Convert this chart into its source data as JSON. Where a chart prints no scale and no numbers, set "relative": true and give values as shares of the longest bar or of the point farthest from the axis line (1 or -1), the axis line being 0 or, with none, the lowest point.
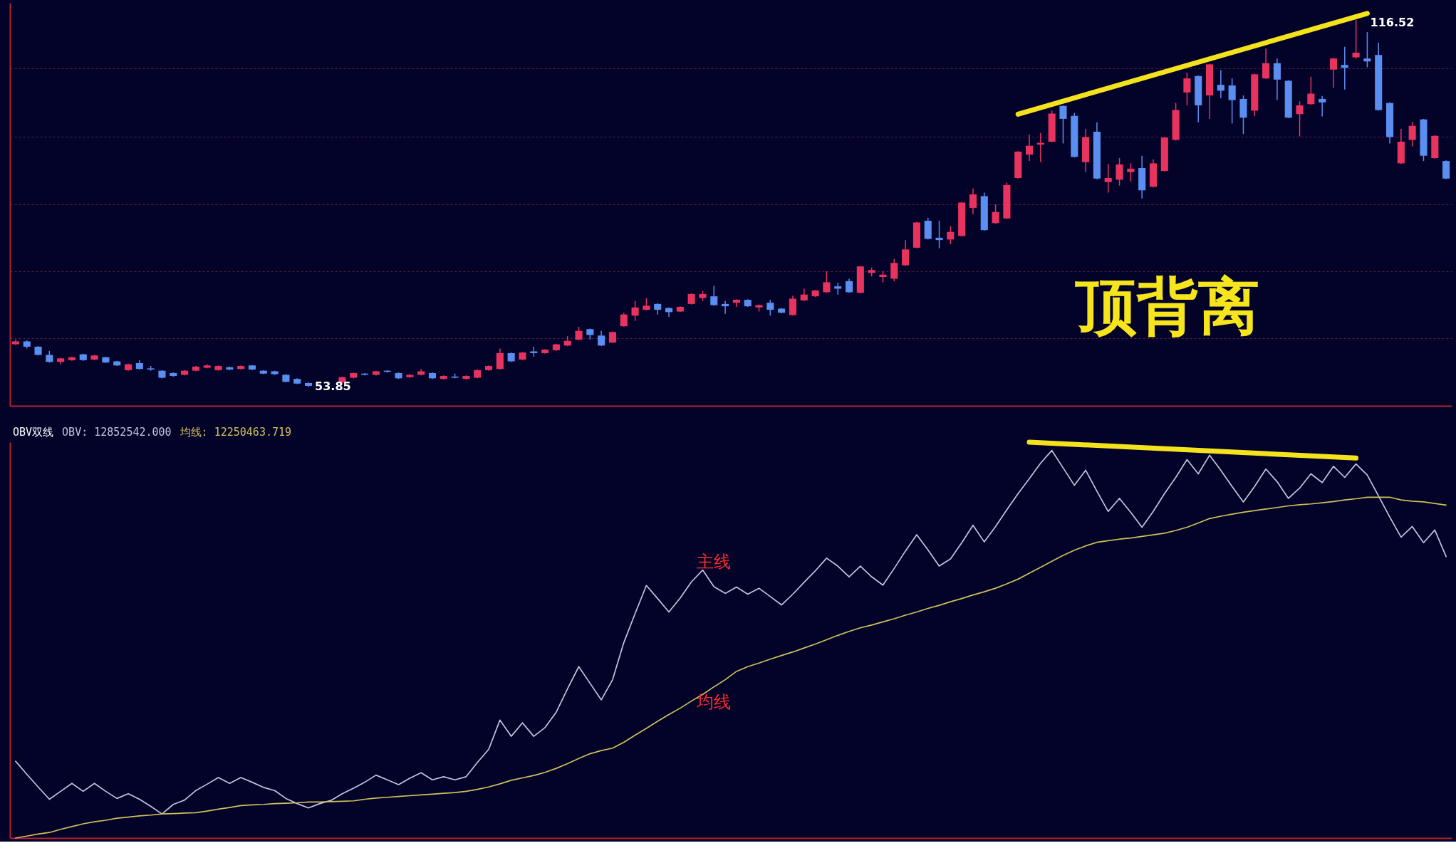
{
  "chart_data": [
    {
      "type": "candlestick",
      "categories": [
        null,
        null,
        null,
        null,
        null,
        null,
        null,
        null,
        null,
        null,
        null,
        null,
        null,
        null,
        null,
        null,
        null,
        null,
        null,
        null,
        null,
        null,
        null,
        null,
        null,
        null,
        null,
        null,
        null,
        null,
        null,
        null,
        null,
        null,
        null,
        null,
        null,
        null,
        null,
        null,
        null,
        null,
        null,
        null,
        null,
        null,
        null,
        null,
        null,
        null,
        null,
        null,
        null,
        null,
        null,
        null,
        null,
        null,
        null,
        null,
        null,
        null,
        null,
        null,
        null,
        null,
        null,
        null,
        null,
        null,
        null,
        null,
        null,
        null,
        null,
        null,
        null,
        null,
        null,
        null,
        null,
        null,
        null,
        null,
        null,
        null,
        null,
        null,
        null,
        null,
        null,
        null,
        null,
        null,
        null,
        null,
        null,
        null,
        null,
        null,
        null,
        null,
        null,
        null,
        null,
        null,
        null,
        null,
        null,
        null,
        null,
        null,
        null,
        null,
        null,
        null,
        null,
        null,
        null,
        null,
        null,
        null,
        null,
        null,
        null,
        null,
        null,
        null
      ],
      "ohlc": [
        [
          61.1,
          61.9,
          61.0,
          61.6
        ],
        [
          61.6,
          61.8,
          60.4,
          60.7
        ],
        [
          60.7,
          60.8,
          59.2,
          59.3
        ],
        [
          59.3,
          60.0,
          58.0,
          58.1
        ],
        [
          58.1,
          58.8,
          57.7,
          58.7
        ],
        [
          58.4,
          59.0,
          58.3,
          58.9
        ],
        [
          59.4,
          59.5,
          58.3,
          58.4
        ],
        [
          58.5,
          59.3,
          58.4,
          59.2
        ],
        [
          58.9,
          59.0,
          57.9,
          58.0
        ],
        [
          58.2,
          58.3,
          57.4,
          57.5
        ],
        [
          56.7,
          57.8,
          56.6,
          57.7
        ],
        [
          57.9,
          58.4,
          56.8,
          56.9
        ],
        [
          57.0,
          57.4,
          56.6,
          56.8
        ],
        [
          56.6,
          56.7,
          55.3,
          55.4
        ],
        [
          56.2,
          56.3,
          55.6,
          55.7
        ],
        [
          55.9,
          56.7,
          55.8,
          56.6
        ],
        [
          56.6,
          57.4,
          56.5,
          57.3
        ],
        [
          57.1,
          57.7,
          57.0,
          57.5
        ],
        [
          56.7,
          57.5,
          56.6,
          57.4
        ],
        [
          57.2,
          57.3,
          56.7,
          56.8
        ],
        [
          56.9,
          57.5,
          56.8,
          57.4
        ],
        [
          57.5,
          57.6,
          56.7,
          56.8
        ],
        [
          56.6,
          56.7,
          56.0,
          56.1
        ],
        [
          56.5,
          56.6,
          55.9,
          56.0
        ],
        [
          55.9,
          56.0,
          54.6,
          54.7
        ],
        [
          55.2,
          55.3,
          54.3,
          54.4
        ],
        [
          54.5,
          54.6,
          53.85,
          54.0
        ],
        null,
        null,
        [
          54.6,
          55.6,
          54.5,
          55.5
        ],
        [
          55.4,
          56.3,
          55.3,
          56.2
        ],
        [
          56.1,
          56.2,
          55.8,
          55.9
        ],
        [
          55.9,
          56.6,
          55.8,
          56.5
        ],
        [
          56.6,
          56.7,
          56.3,
          56.4
        ],
        [
          56.2,
          56.3,
          55.2,
          55.3
        ],
        [
          55.5,
          56.0,
          55.4,
          55.9
        ],
        [
          55.9,
          56.9,
          55.8,
          56.5
        ],
        [
          56.2,
          56.3,
          55.2,
          55.3
        ],
        [
          55.2,
          55.8,
          55.1,
          55.7
        ],
        [
          55.6,
          56.1,
          55.3,
          55.4
        ],
        [
          55.2,
          55.8,
          55.1,
          55.7
        ],
        [
          55.4,
          56.8,
          55.3,
          56.7
        ],
        [
          56.7,
          57.5,
          56.6,
          57.4
        ],
        [
          56.9,
          60.4,
          56.8,
          59.6
        ],
        [
          59.6,
          59.7,
          58.1,
          58.2
        ],
        [
          58.5,
          59.8,
          58.4,
          59.7
        ],
        [
          59.9,
          60.7,
          59.0,
          59.6
        ],
        [
          59.6,
          60.3,
          59.5,
          60.2
        ],
        [
          60.1,
          61.2,
          60.0,
          61.1
        ],
        [
          60.9,
          62.5,
          60.8,
          61.7
        ],
        [
          61.9,
          64.1,
          61.8,
          63.4
        ],
        [
          63.7,
          63.8,
          61.9,
          62.7
        ],
        [
          62.6,
          63.4,
          60.8,
          60.9
        ],
        [
          61.4,
          63.3,
          61.3,
          63.2
        ],
        [
          64.2,
          66.5,
          64.1,
          66.2
        ],
        [
          66.0,
          68.5,
          65.1,
          67.4
        ],
        [
          67.0,
          69.0,
          66.9,
          67.7
        ],
        [
          68.0,
          68.1,
          66.2,
          67.0
        ],
        [
          67.3,
          67.4,
          65.8,
          66.6
        ],
        [
          66.7,
          67.6,
          66.6,
          67.5
        ],
        [
          68.0,
          69.8,
          67.9,
          69.7
        ],
        [
          69.0,
          70.2,
          68.5,
          69.7
        ],
        [
          69.3,
          71.1,
          67.7,
          67.8
        ],
        [
          68.0,
          68.5,
          66.3,
          67.6
        ],
        [
          68.2,
          68.8,
          67.5,
          68.7
        ],
        [
          68.7,
          68.8,
          67.5,
          67.6
        ],
        [
          67.4,
          67.9,
          66.7,
          67.8
        ],
        [
          68.2,
          68.7,
          66.0,
          67.0
        ],
        [
          67.2,
          67.3,
          66.4,
          66.5
        ],
        [
          66.1,
          69.4,
          66.0,
          68.9
        ],
        [
          68.6,
          70.6,
          68.5,
          69.6
        ],
        [
          69.3,
          70.4,
          69.2,
          70.3
        ],
        [
          70.0,
          73.6,
          69.9,
          71.7
        ],
        [
          71.0,
          71.6,
          69.6,
          70.6
        ],
        [
          71.9,
          72.3,
          69.9,
          70.0
        ],
        [
          69.9,
          74.5,
          69.8,
          74.4
        ],
        [
          73.3,
          74.2,
          72.7,
          73.8
        ],
        [
          72.6,
          73.6,
          71.7,
          73.0
        ],
        [
          72.3,
          75.7,
          71.9,
          75.0
        ],
        [
          74.6,
          78.9,
          74.5,
          77.3
        ],
        [
          77.6,
          82.0,
          77.5,
          81.9
        ],
        [
          82.2,
          82.7,
          79.0,
          79.1
        ],
        [
          79.3,
          82.2,
          77.5,
          78.9
        ],
        [
          79.0,
          81.3,
          78.2,
          80.3
        ],
        [
          79.6,
          85.4,
          79.5,
          85.3
        ],
        [
          84.4,
          87.7,
          83.3,
          86.7
        ],
        [
          86.4,
          87.0,
          80.5,
          80.6
        ],
        [
          81.8,
          85.0,
          81.7,
          83.7
        ],
        [
          82.6,
          88.7,
          82.5,
          88.3
        ],
        [
          89.5,
          94.1,
          89.4,
          94.0
        ],
        [
          93.5,
          96.9,
          92.4,
          95.0
        ],
        [
          95.2,
          97.2,
          92.2,
          95.5
        ],
        [
          95.7,
          101.0,
          95.6,
          100.5
        ],
        [
          101.8,
          101.9,
          95.4,
          99.6
        ],
        [
          100.1,
          100.6,
          93.0,
          93.1
        ],
        [
          92.2,
          97.9,
          90.5,
          96.5
        ],
        [
          97.4,
          99.0,
          89.3,
          89.4
        ],
        [
          88.8,
          91.9,
          87.0,
          89.5
        ],
        [
          89.2,
          92.9,
          88.2,
          91.8
        ],
        [
          90.5,
          92.0,
          88.9,
          91.1
        ],
        [
          91.2,
          93.3,
          86.0,
          87.4
        ],
        [
          88.0,
          92.7,
          87.9,
          92.0
        ],
        [
          90.7,
          96.5,
          90.6,
          96.4
        ],
        [
          96.0,
          102.3,
          95.9,
          101.1
        ],
        [
          104.1,
          107.5,
          101.9,
          106.5
        ],
        [
          106.9,
          107.0,
          99.0,
          101.9
        ],
        [
          103.6,
          109.0,
          99.6,
          108.9
        ],
        [
          105.4,
          107.9,
          103.1,
          104.4
        ],
        [
          105.3,
          106.5,
          98.8,
          102.8
        ],
        [
          103.0,
          103.6,
          97.0,
          99.8
        ],
        [
          101.0,
          107.3,
          100.1,
          107.2
        ],
        [
          106.5,
          111.6,
          106.4,
          109.1
        ],
        [
          109.1,
          109.9,
          102.8,
          106.3
        ],
        [
          106.1,
          106.2,
          99.7,
          99.8
        ],
        [
          100.4,
          102.6,
          96.6,
          101.9
        ],
        [
          102.1,
          106.8,
          102.0,
          103.9
        ],
        [
          103.0,
          103.5,
          100.0,
          102.4
        ],
        [
          108.0,
          110.0,
          104.9,
          109.9
        ],
        [
          108.8,
          111.9,
          104.6,
          108.3
        ],
        [
          110.1,
          116.52,
          109.9,
          110.9
        ],
        [
          109.9,
          114.4,
          108.4,
          109.4
        ],
        [
          110.5,
          112.6,
          101.0,
          101.1
        ],
        [
          102.3,
          102.4,
          95.4,
          96.5
        ],
        [
          92.0,
          97.9,
          91.9,
          95.7
        ],
        [
          96.0,
          99.1,
          94.9,
          98.4
        ],
        [
          99.5,
          99.6,
          92.4,
          93.3
        ],
        [
          92.9,
          96.8,
          92.8,
          96.7
        ],
        [
          92.4,
          92.5,
          89.3,
          89.4
        ]
      ],
      "value_labels": [
        null,
        null,
        null,
        null,
        null,
        null,
        null,
        null,
        null,
        null,
        null,
        null,
        null,
        null,
        null,
        null,
        null,
        null,
        null,
        null,
        null,
        null,
        null,
        null,
        null,
        null,
        "53.85",
        null,
        null,
        null,
        null,
        null,
        null,
        null,
        null,
        null,
        null,
        null,
        null,
        null,
        null,
        null,
        null,
        null,
        null,
        null,
        null,
        null,
        null,
        null,
        null,
        null,
        null,
        null,
        null,
        null,
        null,
        null,
        null,
        null,
        null,
        null,
        null,
        null,
        null,
        null,
        null,
        null,
        null,
        null,
        null,
        null,
        null,
        null,
        null,
        null,
        null,
        null,
        null,
        null,
        null,
        null,
        null,
        null,
        null,
        null,
        null,
        null,
        null,
        null,
        null,
        null,
        null,
        null,
        null,
        null,
        null,
        null,
        null,
        null,
        null,
        null,
        null,
        null,
        null,
        null,
        null,
        null,
        null,
        null,
        null,
        null,
        null,
        null,
        null,
        null,
        null,
        null,
        null,
        "116.52",
        null,
        null,
        null,
        null,
        null,
        null,
        null,
        null
      ],
      "colors": [
        "#e8335f",
        "#5a8ef0",
        "#5a8ef0",
        "#5a8ef0",
        "#e8335f",
        "#e8335f",
        "#5a8ef0",
        "#e8335f",
        "#5a8ef0",
        "#5a8ef0",
        "#e8335f",
        "#5a8ef0",
        "#5a8ef0",
        "#5a8ef0",
        "#5a8ef0",
        "#e8335f",
        "#e8335f",
        "#e8335f",
        "#e8335f",
        "#5a8ef0",
        "#e8335f",
        "#5a8ef0",
        "#5a8ef0",
        "#5a8ef0",
        "#5a8ef0",
        "#5a8ef0",
        "#5a8ef0",
        null,
        null,
        "#e8335f",
        "#e8335f",
        "#5a8ef0",
        "#e8335f",
        "#5a8ef0",
        "#5a8ef0",
        "#e8335f",
        "#e8335f",
        "#5a8ef0",
        "#e8335f",
        "#5a8ef0",
        "#e8335f",
        "#e8335f",
        "#e8335f",
        "#e8335f",
        "#5a8ef0",
        "#e8335f",
        "#5a8ef0",
        "#e8335f",
        "#e8335f",
        "#e8335f",
        "#e8335f",
        "#5a8ef0",
        "#5a8ef0",
        "#e8335f",
        "#e8335f",
        "#e8335f",
        "#e8335f",
        "#5a8ef0",
        "#5a8ef0",
        "#e8335f",
        "#e8335f",
        "#e8335f",
        "#5a8ef0",
        "#5a8ef0",
        "#e8335f",
        "#5a8ef0",
        "#e8335f",
        "#5a8ef0",
        "#5a8ef0",
        "#e8335f",
        "#e8335f",
        "#e8335f",
        "#e8335f",
        "#5a8ef0",
        "#5a8ef0",
        "#e8335f",
        "#e8335f",
        "#e8335f",
        "#e8335f",
        "#e8335f",
        "#e8335f",
        "#5a8ef0",
        "#5a8ef0",
        "#e8335f",
        "#e8335f",
        "#e8335f",
        "#5a8ef0",
        "#e8335f",
        "#e8335f",
        "#e8335f",
        "#e8335f",
        "#e8335f",
        "#e8335f",
        "#5a8ef0",
        "#5a8ef0",
        "#e8335f",
        "#5a8ef0",
        "#e8335f",
        "#e8335f",
        "#e8335f",
        "#5a8ef0",
        "#e8335f",
        "#e8335f",
        "#e8335f",
        "#e8335f",
        "#5a8ef0",
        "#e8335f",
        "#5a8ef0",
        "#5a8ef0",
        "#5a8ef0",
        "#e8335f",
        "#e8335f",
        "#5a8ef0",
        "#5a8ef0",
        "#e8335f",
        "#e8335f",
        "#5a8ef0",
        "#e8335f",
        "#5a8ef0",
        "#e8335f",
        "#5a8ef0",
        "#5a8ef0",
        "#5a8ef0",
        "#e8335f",
        "#e8335f",
        "#5a8ef0",
        "#e8335f",
        "#5a8ef0"
      ],
      "series": [
        {
          "type": "line",
          "color": "#f4e31c",
          "values": [
            null,
            null,
            null,
            null,
            null,
            null,
            null,
            null,
            null,
            null,
            null,
            null,
            null,
            null,
            null,
            null,
            null,
            null,
            null,
            null,
            null,
            null,
            null,
            null,
            null,
            null,
            null,
            null,
            null,
            null,
            null,
            null,
            null,
            null,
            null,
            null,
            null,
            null,
            null,
            null,
            null,
            null,
            null,
            null,
            null,
            null,
            null,
            null,
            null,
            null,
            null,
            null,
            null,
            null,
            null,
            null,
            null,
            null,
            null,
            null,
            null,
            null,
            null,
            null,
            null,
            null,
            null,
            null,
            null,
            null,
            null,
            null,
            null,
            null,
            null,
            null,
            null,
            null,
            null,
            null,
            null,
            null,
            null,
            null,
            null,
            null,
            null,
            null,
            null,
            100.4,
            null,
            null,
            null,
            null,
            null,
            null,
            null,
            null,
            null,
            null,
            null,
            null,
            null,
            null,
            null,
            null,
            null,
            null,
            null,
            null,
            null,
            null,
            null,
            null,
            null,
            null,
            null,
            null,
            null,
            null,
            117.6,
            null,
            null,
            null,
            null,
            null,
            null,
            null
          ]
        }
      ],
      "ylim": [
        50.6,
        119.4
      ],
      "yticks": [
        {
          "value": 62.1,
          "label": null
        },
        {
          "value": 73.6,
          "label": null
        },
        {
          "value": 85.0,
          "label": null
        },
        {
          "value": 96.6,
          "label": null
        },
        {
          "value": 108.2,
          "label": null
        }
      ],
      "grid": "y",
      "annotations": [
        "顶背离"
      ]
    },
    {
      "type": "line",
      "relative": true,
      "title": "OBV双线",
      "categories": [
        null,
        null,
        null,
        null,
        null,
        null,
        null,
        null,
        null,
        null,
        null,
        null,
        null,
        null,
        null,
        null,
        null,
        null,
        null,
        null,
        null,
        null,
        null,
        null,
        null,
        null,
        null,
        null,
        null,
        null,
        null,
        null,
        null,
        null,
        null,
        null,
        null,
        null,
        null,
        null,
        null,
        null,
        null,
        null,
        null,
        null,
        null,
        null,
        null,
        null,
        null,
        null,
        null,
        null,
        null,
        null,
        null,
        null,
        null,
        null,
        null,
        null,
        null,
        null,
        null,
        null,
        null,
        null,
        null,
        null,
        null,
        null,
        null,
        null,
        null,
        null,
        null,
        null,
        null,
        null,
        null,
        null,
        null,
        null,
        null,
        null,
        null,
        null,
        null,
        null,
        null,
        null,
        null,
        null,
        null,
        null,
        null,
        null,
        null,
        null,
        null,
        null,
        null,
        null,
        null,
        null,
        null,
        null,
        null,
        null,
        null,
        null,
        null,
        null,
        null,
        null,
        null,
        null,
        null,
        null,
        null,
        null,
        null,
        null,
        null,
        null,
        null,
        null
      ],
      "series": [
        {
          "name": "主线",
          "color": "#c4c4de",
          "values": [
            0.194,
            0.161,
            0.129,
            0.098,
            0.118,
            0.138,
            0.118,
            0.138,
            0.118,
            0.1,
            0.112,
            0.098,
            0.08,
            0.061,
            0.085,
            0.096,
            0.12,
            0.136,
            0.153,
            0.138,
            0.153,
            0.141,
            0.128,
            0.12,
            0.1,
            0.087,
            0.076,
            0.087,
            0.095,
            0.112,
            0.126,
            0.141,
            0.159,
            0.147,
            0.135,
            0.151,
            0.165,
            0.147,
            0.155,
            0.147,
            0.155,
            0.191,
            0.224,
            0.298,
            0.257,
            0.291,
            0.257,
            0.279,
            0.318,
            0.377,
            0.433,
            0.391,
            0.349,
            0.4,
            0.494,
            0.567,
            0.638,
            0.605,
            0.571,
            0.606,
            0.647,
            0.677,
            0.635,
            0.618,
            0.634,
            0.616,
            0.631,
            0.61,
            0.589,
            0.616,
            0.646,
            0.675,
            0.707,
            0.687,
            0.66,
            0.687,
            0.66,
            0.639,
            0.681,
            0.725,
            0.766,
            0.728,
            0.687,
            0.705,
            0.746,
            0.79,
            0.748,
            0.787,
            0.829,
            0.87,
            0.908,
            0.947,
            0.979,
            0.935,
            0.891,
            0.929,
            0.876,
            0.825,
            0.858,
            0.823,
            0.785,
            0.825,
            0.87,
            0.911,
            0.956,
            0.92,
            0.967,
            0.929,
            0.888,
            0.849,
            0.888,
            0.932,
            0.9,
            0.858,
            0.884,
            0.92,
            0.898,
            0.939,
            0.911,
            0.945,
            0.917,
            0.864,
            0.811,
            0.76,
            0.787,
            0.746,
            0.778,
            0.711
          ]
        },
        {
          "name": "均线",
          "color": "#cfc15a",
          "values": [
            0.0,
            0.005,
            0.01,
            0.014,
            0.022,
            0.029,
            0.036,
            0.041,
            0.045,
            0.05,
            0.053,
            0.056,
            0.058,
            0.061,
            0.062,
            0.063,
            0.064,
            0.068,
            0.073,
            0.077,
            0.082,
            0.084,
            0.085,
            0.087,
            0.088,
            0.089,
            0.091,
            0.091,
            0.092,
            0.093,
            0.094,
            0.098,
            0.101,
            0.103,
            0.105,
            0.107,
            0.109,
            0.111,
            0.113,
            0.115,
            0.118,
            0.123,
            0.129,
            0.137,
            0.146,
            0.152,
            0.158,
            0.166,
            0.176,
            0.188,
            0.201,
            0.213,
            0.221,
            0.227,
            0.242,
            0.26,
            0.277,
            0.295,
            0.312,
            0.328,
            0.346,
            0.363,
            0.382,
            0.4,
            0.421,
            0.433,
            0.442,
            0.452,
            0.461,
            0.47,
            0.48,
            0.49,
            0.501,
            0.512,
            0.522,
            0.531,
            0.538,
            0.546,
            0.554,
            0.563,
            0.571,
            0.58,
            0.588,
            0.597,
            0.605,
            0.614,
            0.622,
            0.631,
            0.642,
            0.654,
            0.669,
            0.684,
            0.699,
            0.714,
            0.727,
            0.738,
            0.747,
            0.751,
            0.755,
            0.758,
            0.762,
            0.766,
            0.77,
            0.777,
            0.785,
            0.796,
            0.807,
            0.813,
            0.818,
            0.823,
            0.827,
            0.831,
            0.835,
            0.839,
            0.842,
            0.844,
            0.847,
            0.85,
            0.854,
            0.857,
            0.861,
            0.861,
            0.861,
            0.854,
            0.851,
            0.849,
            0.845,
            0.841
          ]
        },
        {
          "color": "#f4e31c",
          "values": [
            null,
            null,
            null,
            null,
            null,
            null,
            null,
            null,
            null,
            null,
            null,
            null,
            null,
            null,
            null,
            null,
            null,
            null,
            null,
            null,
            null,
            null,
            null,
            null,
            null,
            null,
            null,
            null,
            null,
            null,
            null,
            null,
            null,
            null,
            null,
            null,
            null,
            null,
            null,
            null,
            null,
            null,
            null,
            null,
            null,
            null,
            null,
            null,
            null,
            null,
            null,
            null,
            null,
            null,
            null,
            null,
            null,
            null,
            null,
            null,
            null,
            null,
            null,
            null,
            null,
            null,
            null,
            null,
            null,
            null,
            null,
            null,
            null,
            null,
            null,
            null,
            null,
            null,
            null,
            null,
            null,
            null,
            null,
            null,
            null,
            null,
            null,
            null,
            null,
            null,
            1.0,
            null,
            null,
            null,
            null,
            null,
            null,
            null,
            null,
            null,
            null,
            null,
            null,
            null,
            null,
            null,
            null,
            null,
            null,
            null,
            null,
            null,
            null,
            null,
            null,
            null,
            null,
            null,
            null,
            0.96,
            null,
            null,
            null,
            null,
            null,
            null,
            null,
            null
          ]
        }
      ],
      "annotations": [
        "OBV: 12852542.000",
        "均线: 12250463.719"
      ]
    }
  ]
}
